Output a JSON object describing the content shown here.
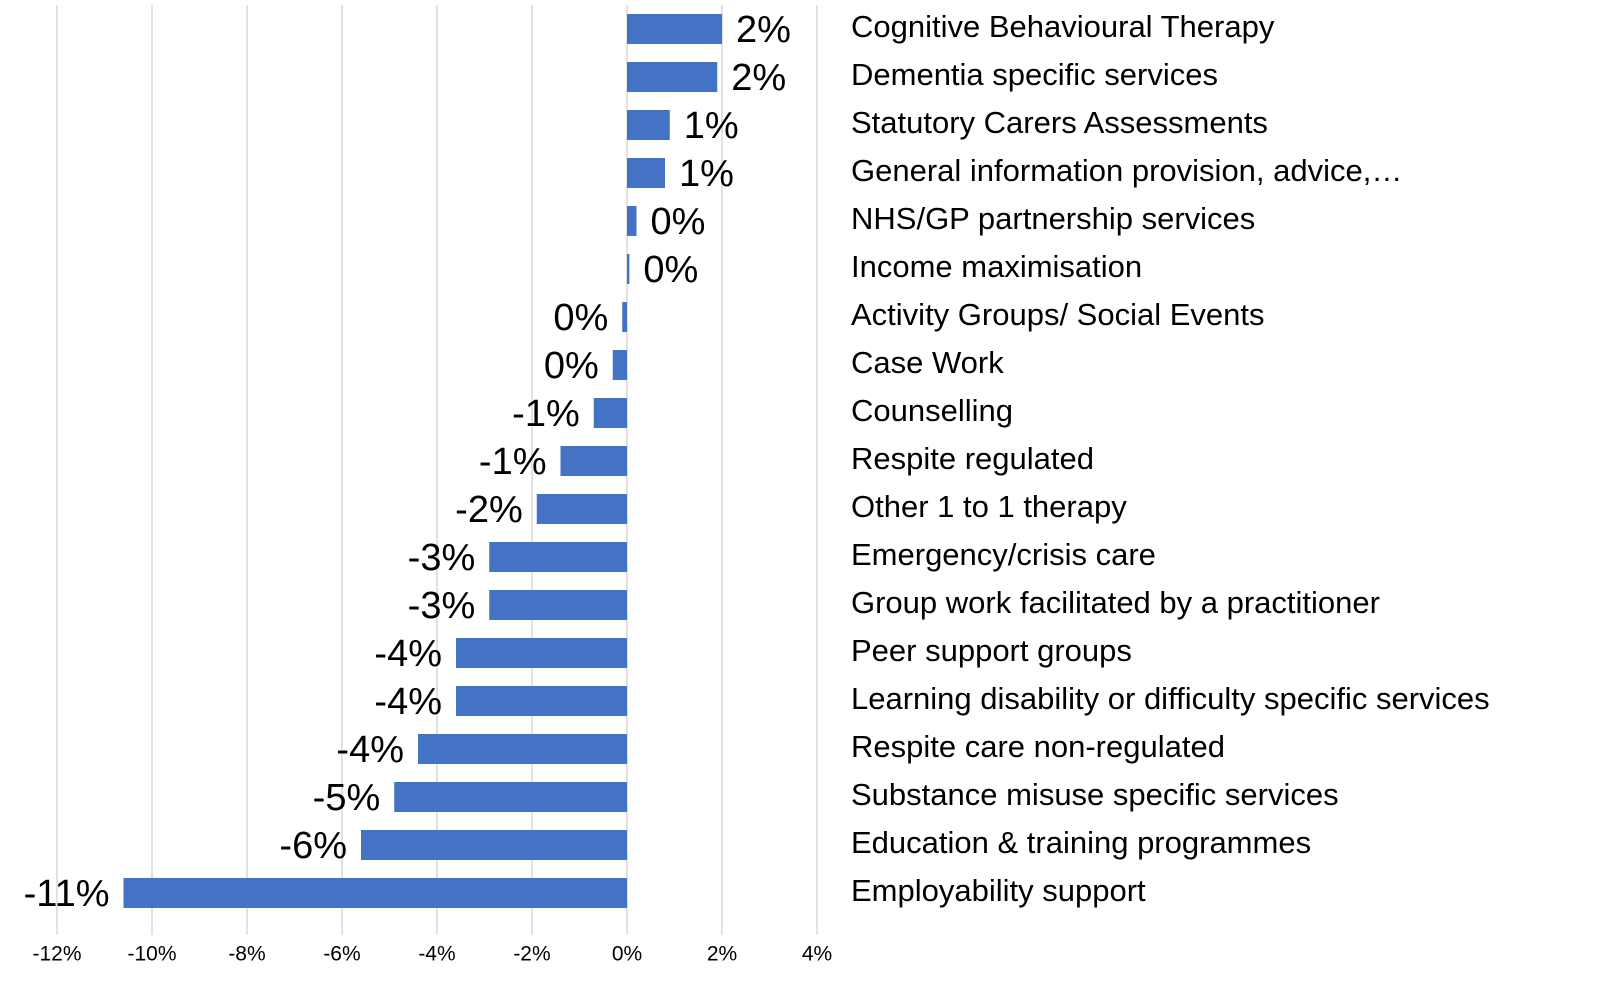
{
  "chart_data": {
    "type": "bar",
    "orientation": "horizontal",
    "color": "#4472c4",
    "grid": true,
    "categories": [
      "Cognitive Behavioural Therapy",
      "Dementia specific services",
      "Statutory Carers Assessments",
      "General information provision, advice,…",
      "NHS/GP partnership services",
      "Income maximisation",
      "Activity Groups/ Social Events",
      "Case Work",
      "Counselling",
      "Respite regulated",
      "Other 1 to 1 therapy",
      "Emergency/crisis care",
      "Group work facilitated by a practitioner",
      "Peer support groups",
      "Learning disability or difficulty specific services",
      "Respite care non-regulated",
      "Substance misuse specific services",
      "Education & training programmes",
      "Employability support"
    ],
    "values": [
      2.0,
      1.9,
      0.9,
      0.8,
      0.2,
      0.05,
      -0.1,
      -0.3,
      -0.7,
      -1.4,
      -1.9,
      -2.9,
      -2.9,
      -3.6,
      -3.6,
      -4.4,
      -4.9,
      -5.6,
      -10.6
    ],
    "value_labels": [
      "2%",
      "2%",
      "1%",
      "1%",
      "0%",
      "0%",
      "0%",
      "0%",
      "-1%",
      "-1%",
      "-2%",
      "-3%",
      "-3%",
      "-4%",
      "-4%",
      "-4%",
      "-5%",
      "-6%",
      "-11%"
    ],
    "xlim": [
      -12,
      4
    ],
    "xticks": [
      {
        "value": -12,
        "label": "-12%"
      },
      {
        "value": -10,
        "label": "-10%"
      },
      {
        "value": -8,
        "label": "-8%"
      },
      {
        "value": -6,
        "label": "-6%"
      },
      {
        "value": -4,
        "label": "-4%"
      },
      {
        "value": -2,
        "label": "-2%"
      },
      {
        "value": 0,
        "label": "0%"
      },
      {
        "value": 2,
        "label": "2%"
      },
      {
        "value": 4,
        "label": "4%"
      }
    ]
  }
}
